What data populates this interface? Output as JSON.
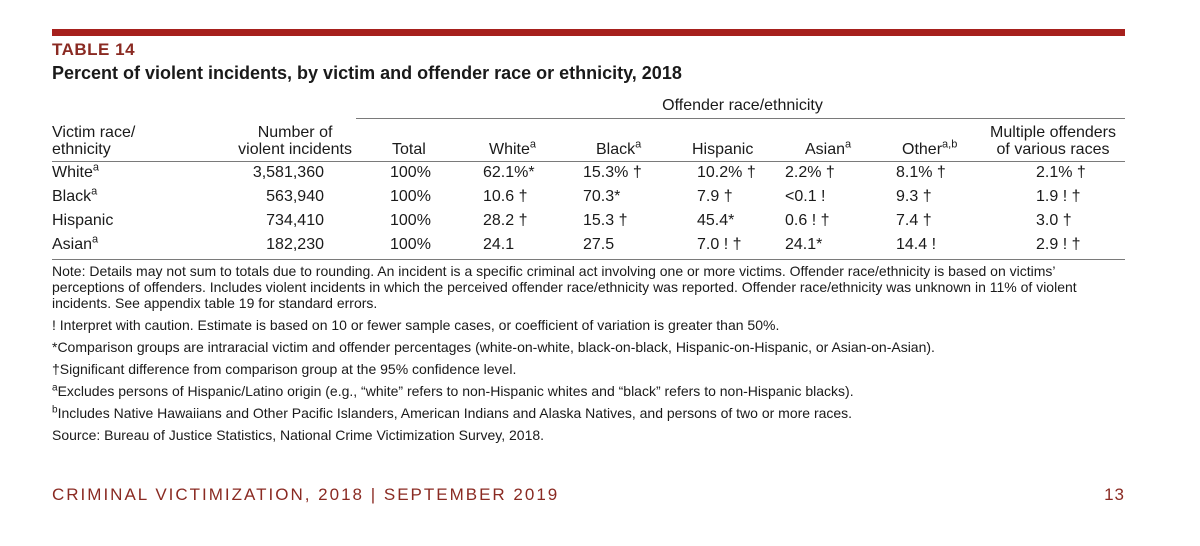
{
  "table_label": "TABLE 14",
  "title": "Percent of violent incidents, by victim and offender race or ethnicity, 2018",
  "offender_group_header": "Offender race/ethnicity",
  "columns": {
    "victim": [
      "Victim race/",
      "ethnicity"
    ],
    "number": [
      "Number of",
      "violent incidents"
    ],
    "total": "Total",
    "white": "White",
    "white_sup": "a",
    "black": "Black",
    "black_sup": "a",
    "hispanic": "Hispanic",
    "asian": "Asian",
    "asian_sup": "a",
    "other": "Other",
    "other_sup": "a,b",
    "multiple": [
      "Multiple offenders",
      "of various races"
    ]
  },
  "rows": [
    {
      "label": "White",
      "sup": "a",
      "number": "3,581,360",
      "total": "100%",
      "white": "62.1%*",
      "black": "15.3% †",
      "hispanic": "10.2% †",
      "asian": "2.2% †",
      "other": "8.1% †",
      "multiple": "2.1% †"
    },
    {
      "label": "Black",
      "sup": "a",
      "number": "563,940",
      "total": "100%",
      "white": "10.6 †",
      "black": "70.3*",
      "hispanic": "7.9 †",
      "asian": "<0.1 !",
      "other": "9.3 †",
      "multiple": "1.9 ! †"
    },
    {
      "label": "Hispanic",
      "sup": "",
      "number": "734,410",
      "total": "100%",
      "white": "28.2 †",
      "black": "15.3 †",
      "hispanic": "45.4*",
      "asian": "0.6 ! †",
      "other": "7.4 †",
      "multiple": "3.0 †"
    },
    {
      "label": "Asian",
      "sup": "a",
      "number": "182,230",
      "total": "100%",
      "white": "24.1",
      "black": "27.5",
      "hispanic": "7.0 ! †",
      "asian": "24.1*",
      "other": "14.4 !",
      "multiple": "2.9 ! †"
    }
  ],
  "notes": {
    "note": "Note: Details may not sum to totals due to rounding. An incident is a specific criminal act involving one or more victims. Offender race/ethnicity is based on victims’ perceptions of offenders. Includes violent incidents in which the perceived offender race/ethnicity was reported. Offender race/ethnicity was unknown in 11% of violent incidents. See appendix table 19 for standard errors.",
    "caution": "! Interpret with caution. Estimate is based on 10 or fewer sample cases, or coefficient of variation is greater than 50%.",
    "asterisk": "*Comparison groups are intraracial victim and offender percentages (white-on-white, black-on-black, Hispanic-on-Hispanic, or Asian-on-Asian).",
    "dagger": "†Significant difference from comparison group at the 95% confidence level.",
    "a_mark": "a",
    "a_text": "Excludes persons of Hispanic/Latino origin (e.g., “white” refers to non-Hispanic whites and “black” refers to non-Hispanic blacks).",
    "b_mark": "b",
    "b_text": "Includes Native Hawaiians and Other Pacific Islanders, American Indians and Alaska Natives, and persons of two or more races.",
    "source": "Source: Bureau of Justice Statistics, National Crime Victimization Survey, 2018."
  },
  "footer": {
    "left": "CRIMINAL VICTIMIZATION, 2018 | SEPTEMBER 2019",
    "page": "13"
  },
  "colors": {
    "accent": "#a6201d",
    "label": "#8a2a22"
  }
}
